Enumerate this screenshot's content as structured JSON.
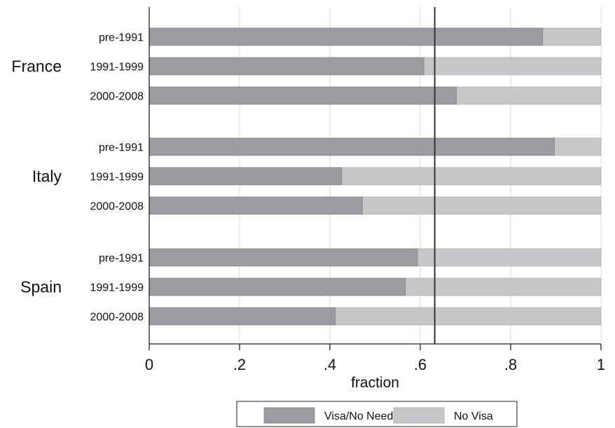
{
  "chart_data": {
    "type": "bar",
    "orientation": "horizontal",
    "stacked": true,
    "title": "",
    "xlabel": "fraction",
    "ylabel": "",
    "xlim": [
      0,
      1
    ],
    "x_ticks": [
      0,
      0.2,
      0.4,
      0.6,
      0.8,
      1
    ],
    "x_tick_labels": [
      "0",
      ".2",
      ".4",
      ".6",
      ".8",
      "1"
    ],
    "grid": true,
    "reference_line": 0.632,
    "legend_position": "bottom",
    "groups": [
      {
        "label": "France",
        "categories": [
          "pre-1991",
          "1991-1999",
          "2000-2008"
        ],
        "values": [
          0.871,
          0.608,
          0.68
        ]
      },
      {
        "label": "Italy",
        "categories": [
          "pre-1991",
          "1991-1999",
          "2000-2008"
        ],
        "values": [
          0.897,
          0.426,
          0.472
        ]
      },
      {
        "label": "Spain",
        "categories": [
          "pre-1991",
          "1991-1999",
          "2000-2008"
        ],
        "values": [
          0.594,
          0.567,
          0.412
        ]
      }
    ],
    "series": [
      {
        "name": "Visa/No Need",
        "color": "#9c9ca0"
      },
      {
        "name": "No Visa",
        "color": "#c6c6c8"
      }
    ]
  }
}
